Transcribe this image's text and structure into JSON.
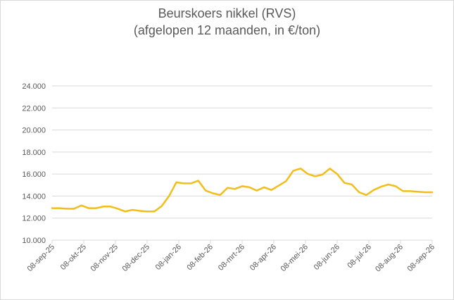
{
  "chart_data": {
    "type": "line",
    "title": "Beurskoers nikkel (RVS)",
    "subtitle": "(afgelopen 12 maanden, in €/ton)",
    "xlabel": "",
    "ylabel": "",
    "ylim": [
      10000,
      24000
    ],
    "y_ticks": [
      10000,
      12000,
      14000,
      16000,
      18000,
      20000,
      22000,
      24000
    ],
    "y_tick_labels": [
      "10.000",
      "12.000",
      "14.000",
      "16.000",
      "18.000",
      "20.000",
      "22.000",
      "24.000"
    ],
    "x_tick_labels": [
      "08-sep-25",
      "08-okt-25",
      "08-nov-25",
      "08-dec-25",
      "08-jan-26",
      "08-feb-26",
      "08-mrt-26",
      "08-apr-26",
      "08-mei-26",
      "08-jun-26",
      "08-jul-26",
      "08-aug-26",
      "08-sep-26"
    ],
    "grid": true,
    "legend": "none",
    "color": "#F2BE1A",
    "series": [
      {
        "values": [
          12900,
          12900,
          12850,
          12850,
          13150,
          12900,
          12900,
          13050,
          13050,
          12850,
          12600,
          12750,
          12650,
          12600,
          12600,
          13100,
          14000,
          15250,
          15150,
          15150,
          15400,
          14500,
          14250,
          14100,
          14750,
          14650,
          14900,
          14800,
          14500,
          14800,
          14550,
          14950,
          15350,
          16300,
          16500,
          16000,
          15800,
          15950,
          16500,
          16000,
          15200,
          15050,
          14350,
          14100,
          14550,
          14850,
          15050,
          14900,
          14450,
          14450,
          14400,
          14350,
          14350
        ]
      }
    ]
  }
}
